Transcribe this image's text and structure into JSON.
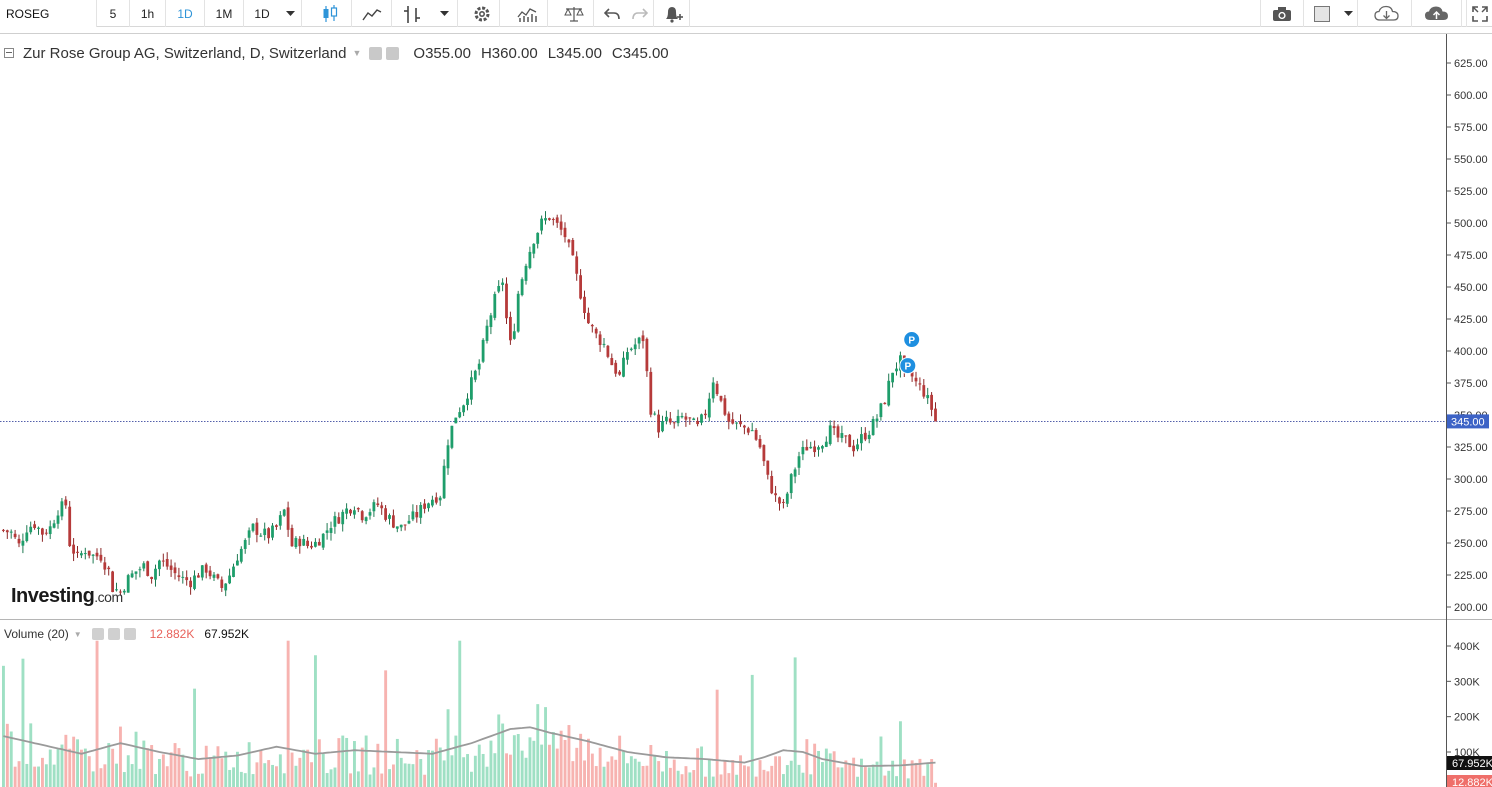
{
  "toolbar": {
    "symbol": "ROSEG",
    "intervals": [
      "5",
      "1h",
      "1D",
      "1M",
      "1D"
    ],
    "active_interval_index": 2
  },
  "legend": {
    "title": "Zur Rose Group AG, Switzerland, D, Switzerland",
    "open_label": "O",
    "open": "355.00",
    "high_label": "H",
    "high": "360.00",
    "low_label": "L",
    "low": "345.00",
    "close_label": "C",
    "close": "345.00"
  },
  "volume_legend": {
    "title": "Volume (20)",
    "volume": "12.882K",
    "ma": "67.952K"
  },
  "logo": {
    "main": "Investing",
    "suffix": ".com"
  },
  "price_axis": {
    "ticks": [
      "625.00",
      "600.00",
      "575.00",
      "550.00",
      "525.00",
      "500.00",
      "475.00",
      "450.00",
      "425.00",
      "400.00",
      "375.00",
      "350.00",
      "325.00",
      "300.00",
      "275.00",
      "250.00",
      "225.00",
      "200.00"
    ],
    "last_price_label": "345.00"
  },
  "volume_axis": {
    "ticks": [
      "400K",
      "300K",
      "200K",
      "100K"
    ],
    "ma_label": "67.952K",
    "vol_label": "12.882K"
  },
  "markers": [
    "P",
    "P"
  ],
  "colors": {
    "up": "#26a69a",
    "down": "#ef5350",
    "up_fill": "#1e9e6b",
    "down_fill": "#b63a3a",
    "vol_up": "#9fe0c4",
    "vol_down": "#f7b3b0",
    "accent": "#2e94d8",
    "ma": "#999999"
  },
  "chart_data": {
    "type": "candlestick",
    "price_range": [
      190,
      640
    ],
    "volume_range": [
      0,
      420000
    ],
    "price_path": [
      [
        0,
        260
      ],
      [
        2,
        258
      ],
      [
        4,
        248
      ],
      [
        6,
        262
      ],
      [
        8,
        265
      ],
      [
        10,
        258
      ],
      [
        12,
        262
      ],
      [
        14,
        276
      ],
      [
        16,
        280
      ],
      [
        17,
        250
      ],
      [
        19,
        238
      ],
      [
        21,
        245
      ],
      [
        23,
        240
      ],
      [
        25,
        240
      ],
      [
        27,
        228
      ],
      [
        28,
        215
      ],
      [
        30,
        212
      ],
      [
        32,
        222
      ],
      [
        34,
        228
      ],
      [
        36,
        232
      ],
      [
        38,
        225
      ],
      [
        40,
        236
      ],
      [
        42,
        232
      ],
      [
        44,
        226
      ],
      [
        46,
        222
      ],
      [
        48,
        220
      ],
      [
        50,
        226
      ],
      [
        52,
        230
      ],
      [
        54,
        222
      ],
      [
        56,
        215
      ],
      [
        58,
        225
      ],
      [
        60,
        240
      ],
      [
        62,
        250
      ],
      [
        64,
        262
      ],
      [
        66,
        258
      ],
      [
        68,
        256
      ],
      [
        70,
        262
      ],
      [
        72,
        275
      ],
      [
        74,
        248
      ],
      [
        76,
        252
      ],
      [
        78,
        248
      ],
      [
        80,
        250
      ],
      [
        82,
        256
      ],
      [
        84,
        265
      ],
      [
        86,
        270
      ],
      [
        88,
        276
      ],
      [
        90,
        280
      ],
      [
        92,
        272
      ],
      [
        94,
        276
      ],
      [
        96,
        280
      ],
      [
        98,
        272
      ],
      [
        100,
        266
      ],
      [
        102,
        262
      ],
      [
        104,
        268
      ],
      [
        106,
        272
      ],
      [
        108,
        280
      ],
      [
        110,
        285
      ],
      [
        112,
        288
      ],
      [
        114,
        330
      ],
      [
        116,
        350
      ],
      [
        118,
        360
      ],
      [
        120,
        375
      ],
      [
        122,
        390
      ],
      [
        124,
        418
      ],
      [
        126,
        440
      ],
      [
        128,
        455
      ],
      [
        129,
        425
      ],
      [
        130,
        405
      ],
      [
        131,
        420
      ],
      [
        132,
        445
      ],
      [
        134,
        470
      ],
      [
        136,
        488
      ],
      [
        138,
        500
      ],
      [
        140,
        505
      ],
      [
        142,
        498
      ],
      [
        144,
        490
      ],
      [
        146,
        470
      ],
      [
        148,
        445
      ],
      [
        150,
        422
      ],
      [
        152,
        412
      ],
      [
        154,
        405
      ],
      [
        156,
        390
      ],
      [
        158,
        380
      ],
      [
        160,
        400
      ],
      [
        162,
        405
      ],
      [
        164,
        410
      ],
      [
        166,
        355
      ],
      [
        168,
        340
      ],
      [
        170,
        345
      ],
      [
        172,
        342
      ],
      [
        174,
        348
      ],
      [
        176,
        345
      ],
      [
        178,
        340
      ],
      [
        180,
        352
      ],
      [
        182,
        378
      ],
      [
        184,
        360
      ],
      [
        186,
        345
      ],
      [
        188,
        342
      ],
      [
        190,
        340
      ],
      [
        192,
        338
      ],
      [
        194,
        325
      ],
      [
        196,
        300
      ],
      [
        198,
        285
      ],
      [
        200,
        278
      ],
      [
        202,
        300
      ],
      [
        204,
        318
      ],
      [
        206,
        325
      ],
      [
        208,
        326
      ],
      [
        210,
        330
      ],
      [
        212,
        338
      ],
      [
        214,
        332
      ],
      [
        216,
        330
      ],
      [
        218,
        325
      ],
      [
        220,
        332
      ],
      [
        222,
        338
      ],
      [
        224,
        348
      ],
      [
        226,
        362
      ],
      [
        228,
        385
      ],
      [
        230,
        392
      ],
      [
        231,
        380
      ],
      [
        232,
        385
      ],
      [
        234,
        375
      ],
      [
        236,
        368
      ],
      [
        238,
        355
      ],
      [
        239,
        345
      ]
    ],
    "volume_ma_path": [
      [
        0,
        145
      ],
      [
        10,
        120
      ],
      [
        20,
        95
      ],
      [
        30,
        125
      ],
      [
        40,
        100
      ],
      [
        50,
        80
      ],
      [
        60,
        90
      ],
      [
        70,
        115
      ],
      [
        80,
        95
      ],
      [
        90,
        105
      ],
      [
        100,
        100
      ],
      [
        110,
        95
      ],
      [
        120,
        125
      ],
      [
        125,
        145
      ],
      [
        130,
        165
      ],
      [
        135,
        170
      ],
      [
        140,
        155
      ],
      [
        150,
        130
      ],
      [
        160,
        100
      ],
      [
        170,
        85
      ],
      [
        180,
        80
      ],
      [
        190,
        70
      ],
      [
        195,
        85
      ],
      [
        200,
        105
      ],
      [
        205,
        100
      ],
      [
        210,
        80
      ],
      [
        220,
        60
      ],
      [
        230,
        62
      ],
      [
        239,
        70
      ]
    ],
    "candle_count": 240
  }
}
